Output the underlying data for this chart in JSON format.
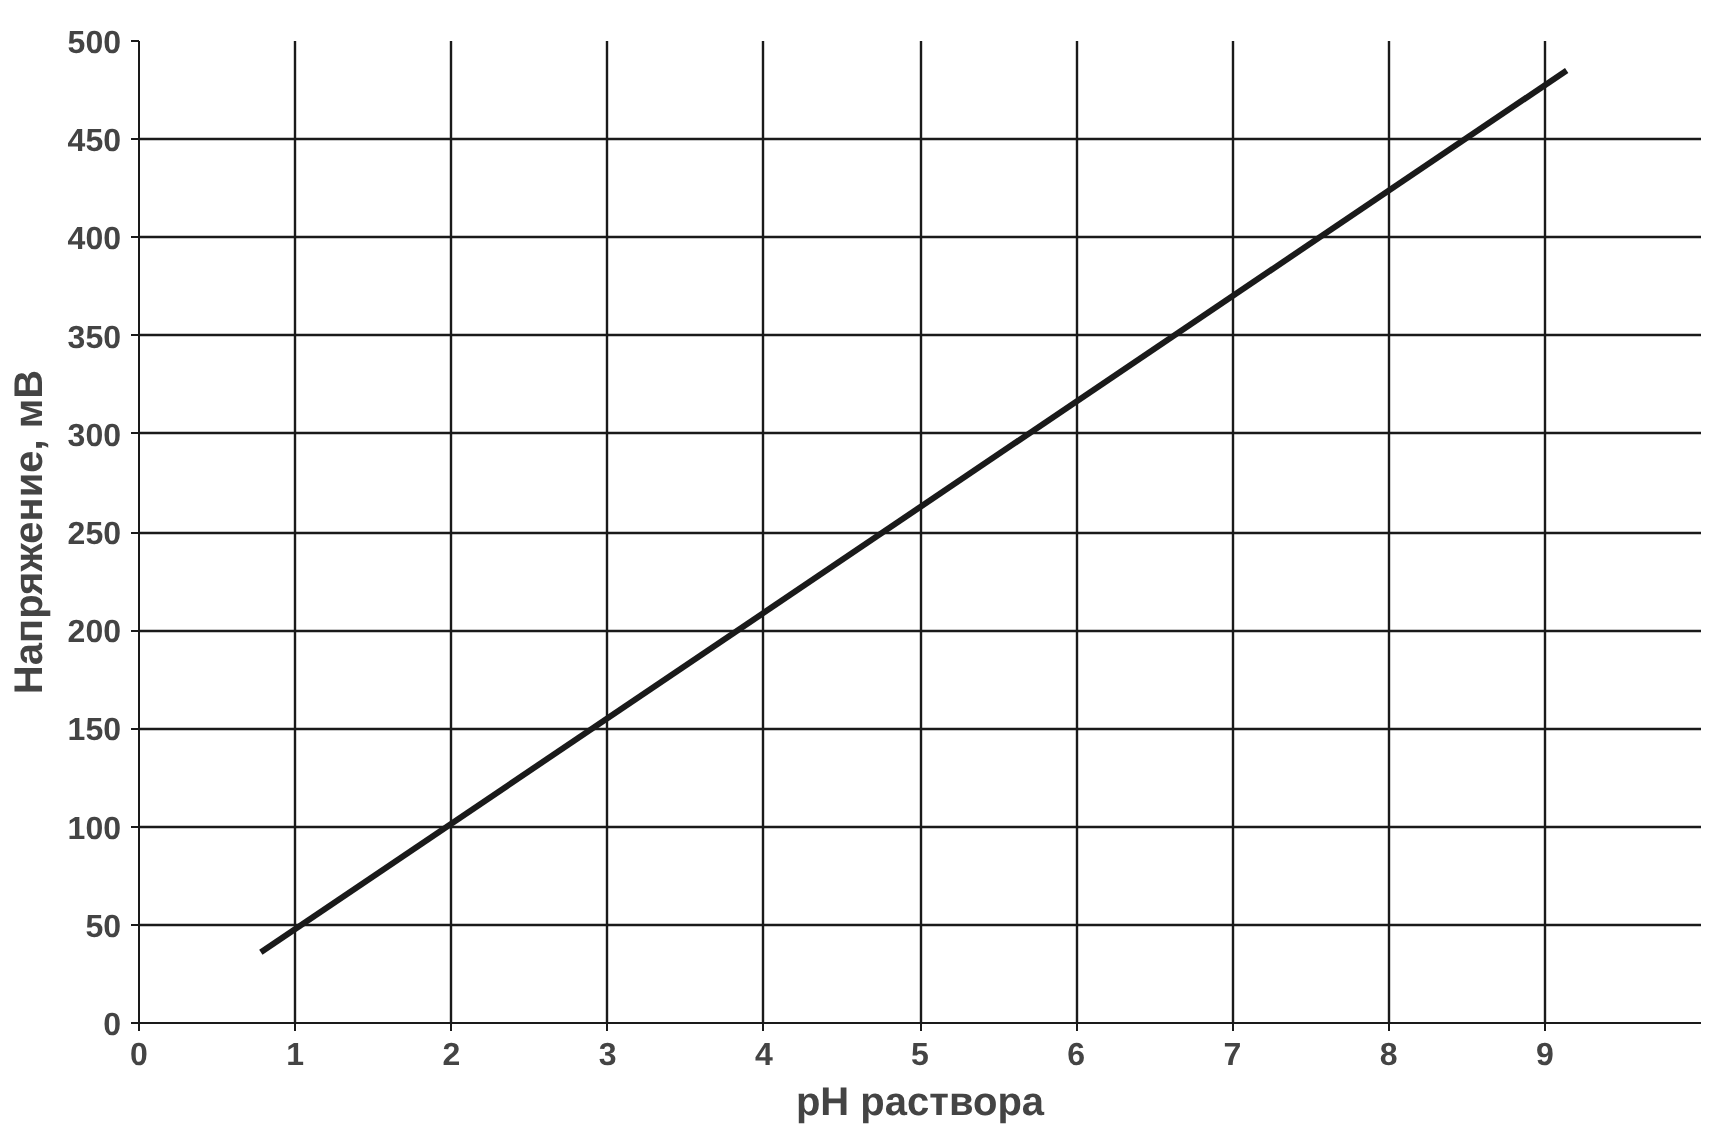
{
  "chart_data": {
    "type": "line",
    "xlabel": "pH раствора",
    "ylabel": "Напряжение, мВ",
    "series": [
      {
        "color": "#1a1a1a",
        "x": [
          0.78,
          9.14
        ],
        "values": [
          36,
          485
        ]
      }
    ],
    "xlim": [
      0,
      10
    ],
    "xticks": [
      0,
      1,
      2,
      3,
      4,
      5,
      6,
      7,
      8,
      9
    ],
    "ylim": [
      0,
      500
    ],
    "yticks": [
      0,
      50,
      100,
      150,
      200,
      250,
      300,
      350,
      400,
      450,
      500
    ],
    "grid": true
  }
}
